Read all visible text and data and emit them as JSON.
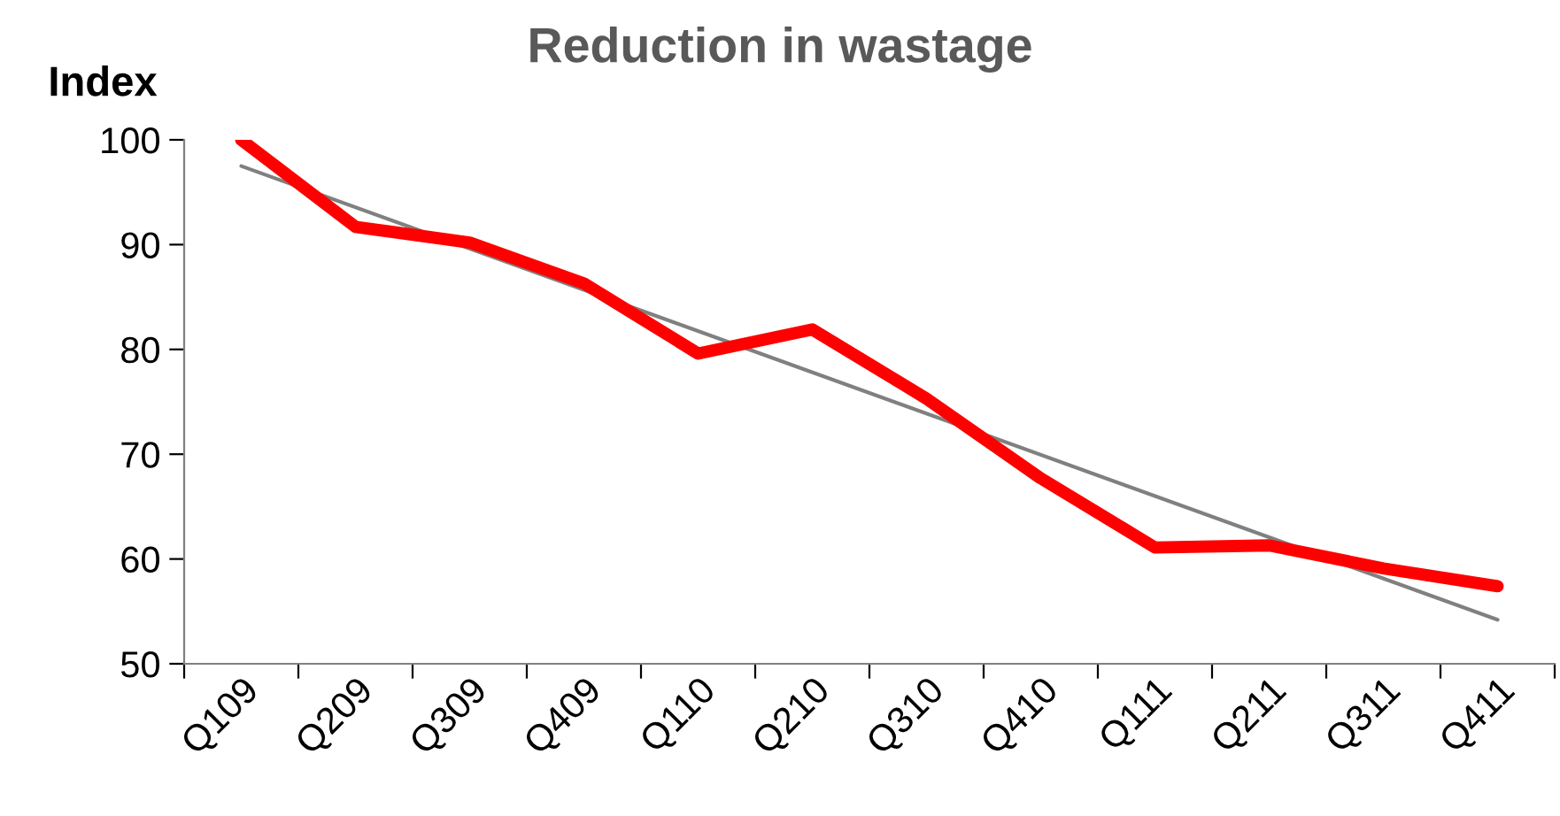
{
  "chart_data": {
    "type": "line",
    "title": "Reduction in wastage",
    "ylabel": "Index",
    "categories": [
      "Q109",
      "Q209",
      "Q309",
      "Q409",
      "Q110",
      "Q210",
      "Q310",
      "Q410",
      "Q111",
      "Q211",
      "Q311",
      "Q411"
    ],
    "series": [
      {
        "color": "#ff0000",
        "values": [
          100,
          91.7,
          90.2,
          86.3,
          79.6,
          81.9,
          75.3,
          67.7,
          61.1,
          61.3,
          59.1,
          57.4
        ]
      },
      {
        "color": "#808080",
        "values": [
          97.5,
          null,
          null,
          null,
          null,
          null,
          null,
          null,
          null,
          null,
          null,
          54.2
        ]
      }
    ],
    "ylim": [
      50,
      100
    ],
    "yticks": [
      50,
      60,
      70,
      80,
      90,
      100
    ],
    "grid": false,
    "legend": false,
    "marker": "none",
    "line_style": "solid"
  }
}
